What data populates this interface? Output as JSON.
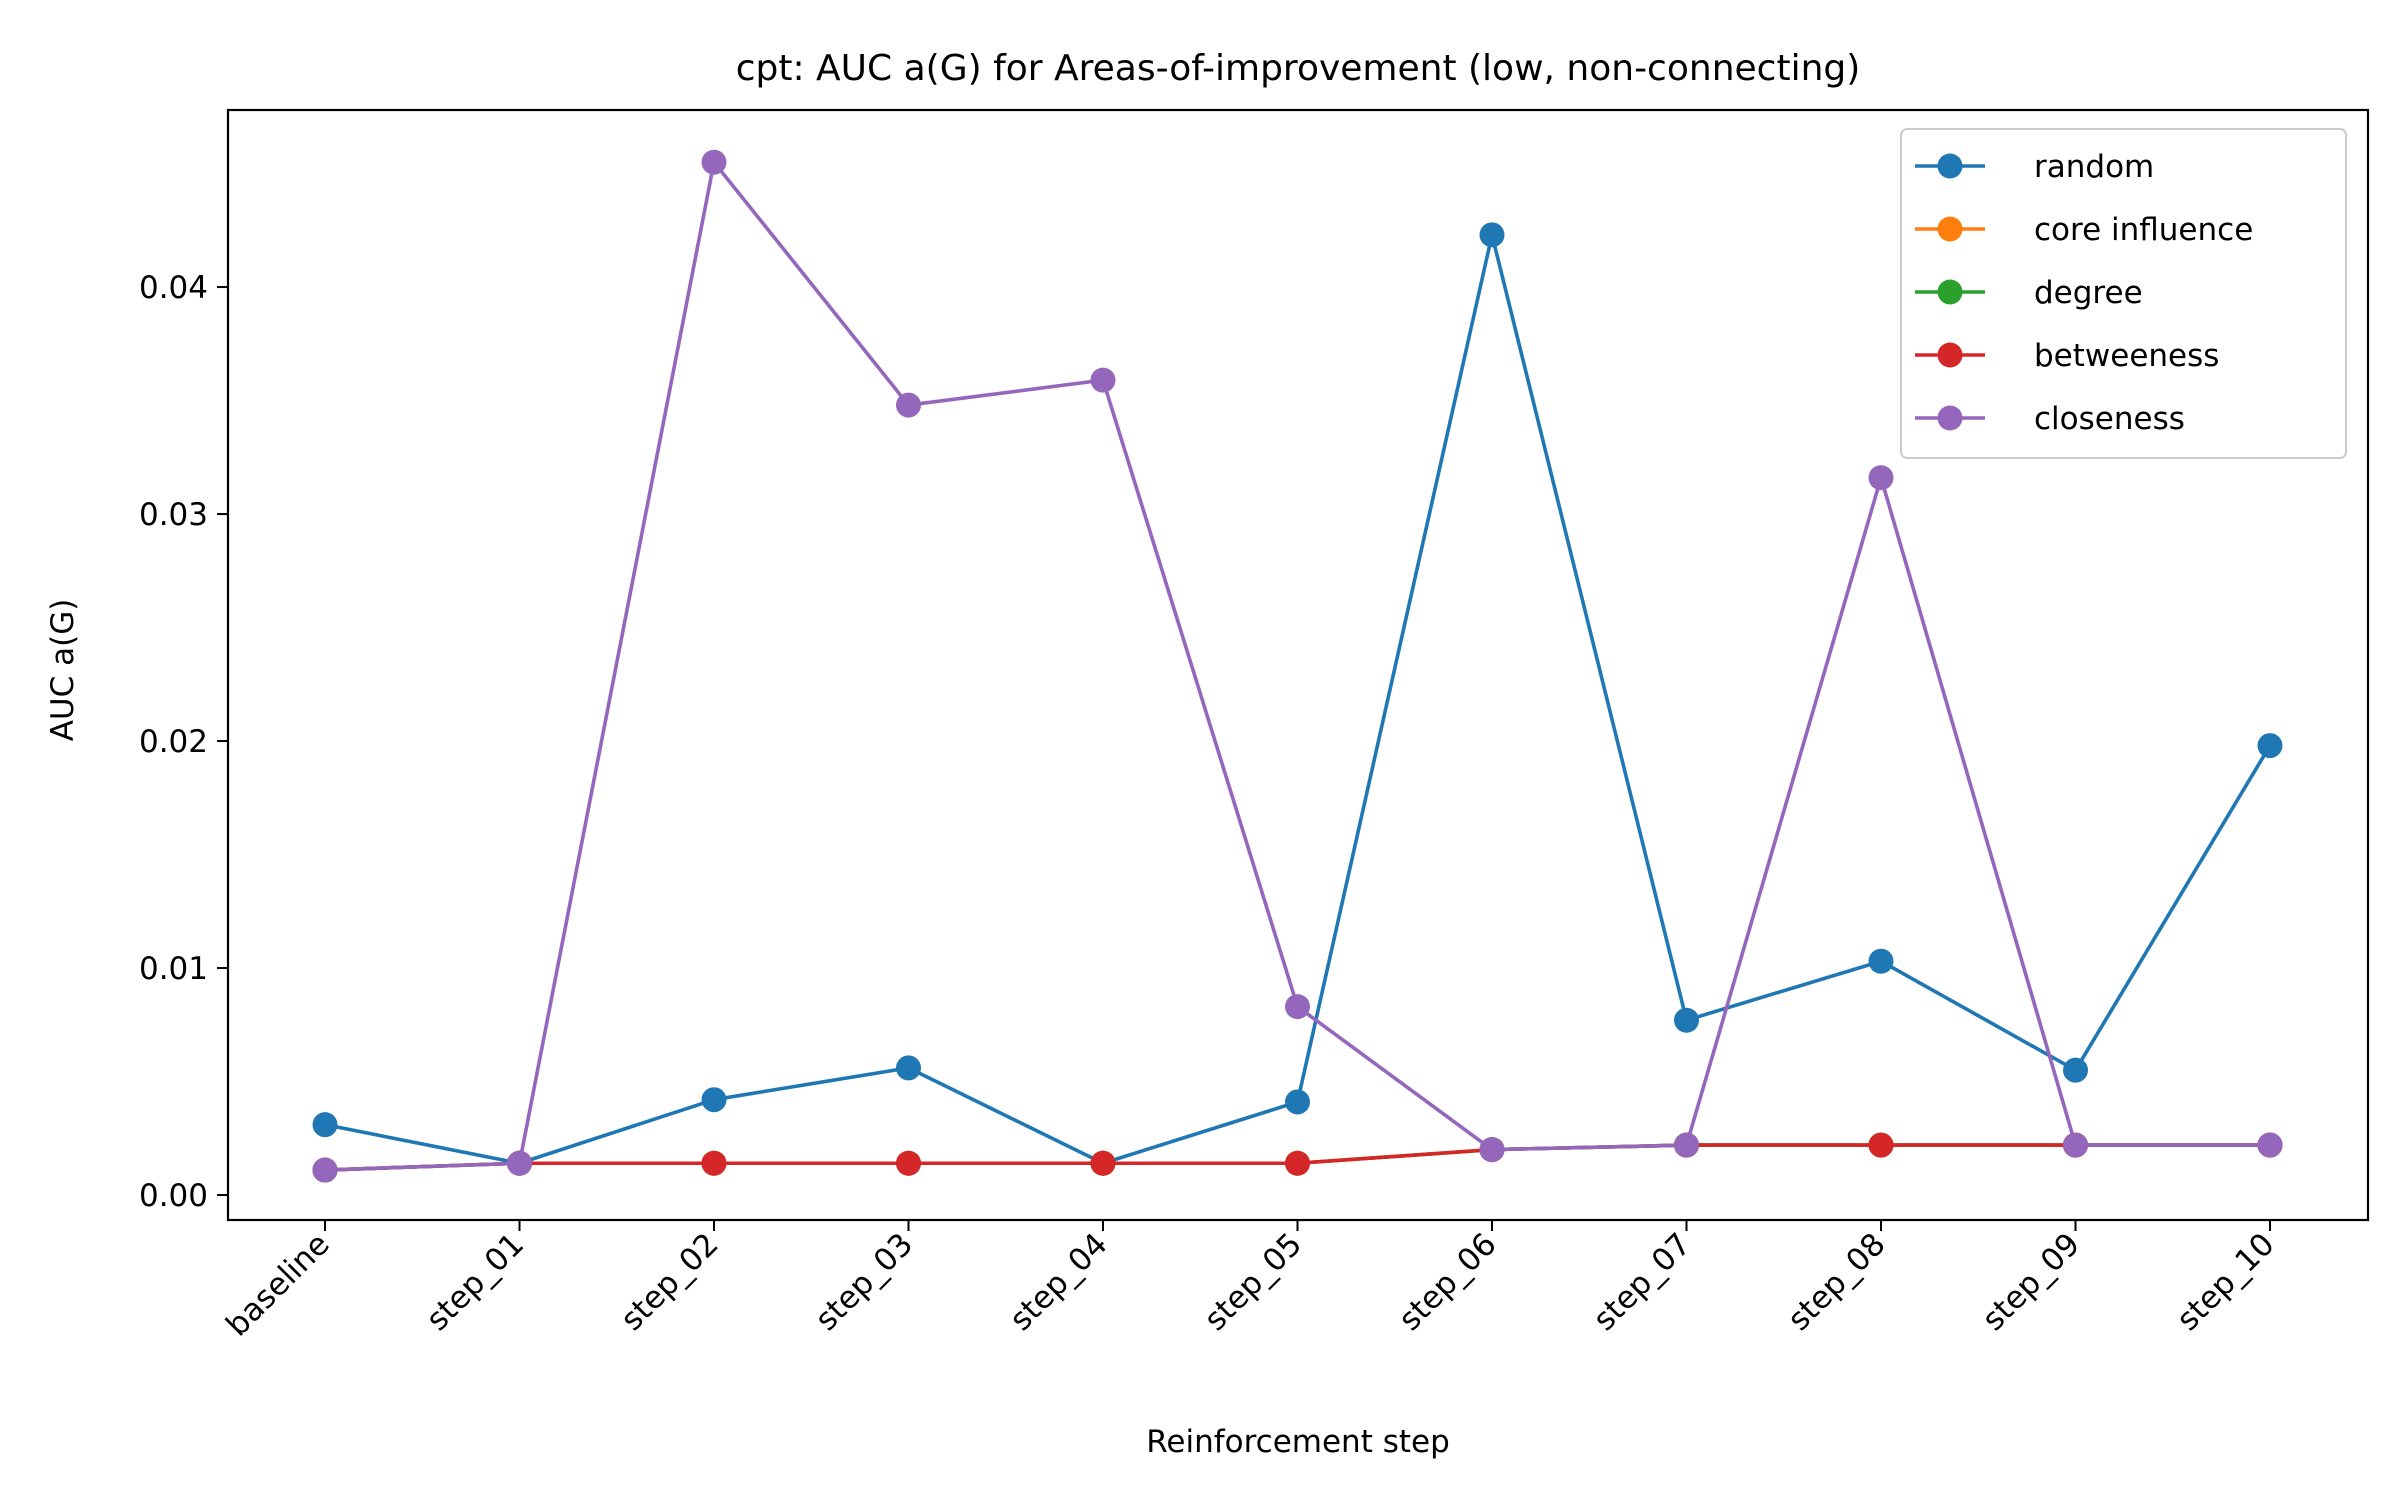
{
  "chart_data": {
    "type": "line",
    "title": "cpt: AUC a(G) for Areas-of-improvement (low, non-connecting)",
    "xlabel": "Reinforcement step",
    "ylabel": "AUC a(G)",
    "categories": [
      "baseline",
      "step_01",
      "step_02",
      "step_03",
      "step_04",
      "step_05",
      "step_06",
      "step_07",
      "step_08",
      "step_09",
      "step_10"
    ],
    "yticks": [
      "0.00",
      "0.01",
      "0.02",
      "0.03",
      "0.04"
    ],
    "ylim": [
      -0.0011,
      0.0478
    ],
    "grid": false,
    "legend_position": "top-right",
    "series": [
      {
        "name": "random",
        "color": "#1f77b4",
        "values": [
          0.0031,
          0.0014,
          0.0042,
          0.0056,
          0.0014,
          0.0041,
          0.0423,
          0.0077,
          0.0103,
          0.0055,
          0.0198
        ]
      },
      {
        "name": "core influence",
        "color": "#ff7f0e",
        "values": [
          0.0011,
          0.0014,
          0.0014,
          0.0014,
          0.0014,
          0.0014,
          0.002,
          0.0022,
          0.0022,
          0.0022,
          0.0022
        ]
      },
      {
        "name": "degree",
        "color": "#2ca02c",
        "values": [
          0.0011,
          0.0014,
          0.0014,
          0.0014,
          0.0014,
          0.0014,
          0.002,
          0.0022,
          0.0022,
          0.0022,
          0.0022
        ]
      },
      {
        "name": "betweeness",
        "color": "#d62728",
        "values": [
          0.0011,
          0.0014,
          0.0014,
          0.0014,
          0.0014,
          0.0014,
          0.002,
          0.0022,
          0.0022,
          0.0022,
          0.0022
        ]
      },
      {
        "name": "closeness",
        "color": "#9467bd",
        "values": [
          0.0011,
          0.0014,
          0.0455,
          0.0348,
          0.0359,
          0.0083,
          0.002,
          0.0022,
          0.0316,
          0.0022,
          0.0022
        ]
      }
    ]
  }
}
